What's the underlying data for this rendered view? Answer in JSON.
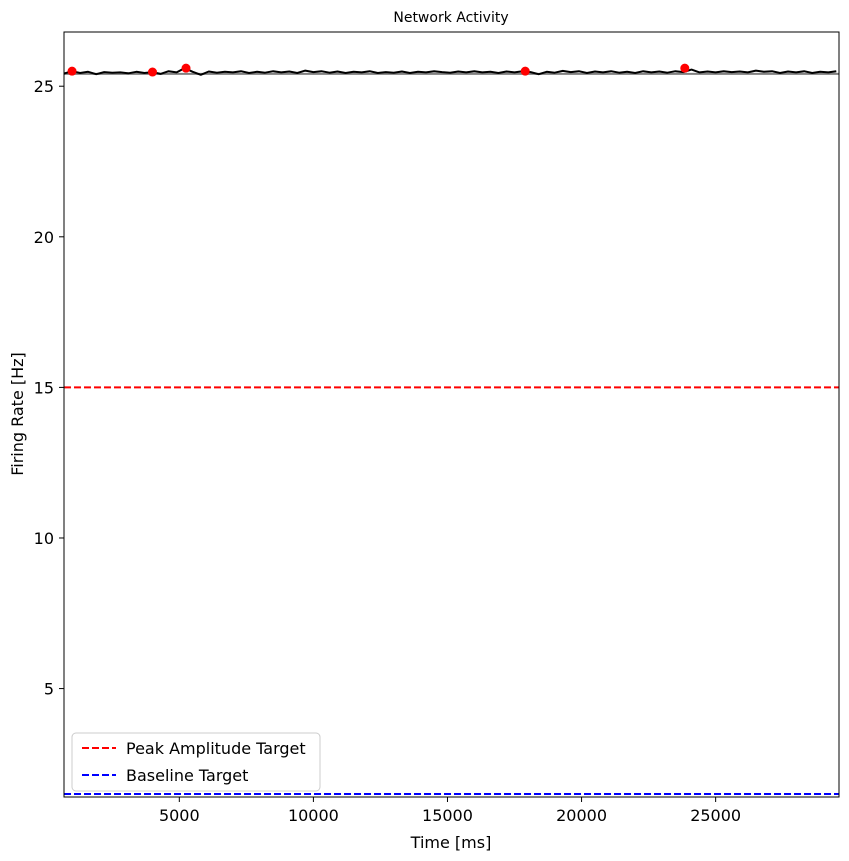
{
  "chart_data": {
    "type": "line",
    "title": "Network Activity",
    "xlabel": "Time [ms]",
    "ylabel": "Firing Rate [Hz]",
    "xlim": [
      700,
      29600
    ],
    "ylim": [
      1.4,
      26.8
    ],
    "xticks": [
      5000,
      10000,
      15000,
      20000,
      25000
    ],
    "yticks": [
      5,
      10,
      15,
      20,
      25
    ],
    "grid": false,
    "legend_position": "lower-left",
    "series": [
      {
        "role": "activity",
        "color": "#000000",
        "x": [
          700,
          1000,
          1300,
          1600,
          1900,
          2200,
          2500,
          2800,
          3100,
          3400,
          3700,
          4000,
          4300,
          4600,
          4900,
          5200,
          5500,
          5800,
          6100,
          6400,
          6700,
          7000,
          7300,
          7600,
          7900,
          8200,
          8500,
          8800,
          9100,
          9400,
          9700,
          10000,
          10300,
          10600,
          10900,
          11200,
          11500,
          11800,
          12100,
          12400,
          12700,
          13000,
          13300,
          13600,
          13900,
          14200,
          14500,
          14800,
          15100,
          15400,
          15700,
          16000,
          16300,
          16600,
          16900,
          17200,
          17500,
          17800,
          18100,
          18400,
          18700,
          19000,
          19300,
          19600,
          19900,
          20200,
          20500,
          20800,
          21100,
          21400,
          21700,
          22000,
          22300,
          22600,
          22900,
          23200,
          23500,
          23800,
          24100,
          24400,
          24700,
          25000,
          25300,
          25600,
          25900,
          26200,
          26500,
          26800,
          27100,
          27400,
          27700,
          28000,
          28300,
          28600,
          28900,
          29200,
          29500
        ],
        "y": [
          25.42,
          25.5,
          25.44,
          25.48,
          25.4,
          25.47,
          25.45,
          25.46,
          25.43,
          25.48,
          25.44,
          25.47,
          25.41,
          25.5,
          25.46,
          25.6,
          25.48,
          25.38,
          25.49,
          25.45,
          25.48,
          25.46,
          25.5,
          25.44,
          25.48,
          25.45,
          25.5,
          25.46,
          25.49,
          25.44,
          25.52,
          25.47,
          25.5,
          25.45,
          25.49,
          25.44,
          25.48,
          25.46,
          25.5,
          25.44,
          25.47,
          25.45,
          25.49,
          25.44,
          25.48,
          25.46,
          25.5,
          25.47,
          25.45,
          25.49,
          25.46,
          25.5,
          25.46,
          25.48,
          25.44,
          25.49,
          25.46,
          25.5,
          25.47,
          25.4,
          25.48,
          25.45,
          25.51,
          25.47,
          25.5,
          25.44,
          25.49,
          25.46,
          25.5,
          25.45,
          25.48,
          25.44,
          25.5,
          25.46,
          25.49,
          25.45,
          25.5,
          25.47,
          25.55,
          25.46,
          25.49,
          25.46,
          25.5,
          25.47,
          25.49,
          25.46,
          25.52,
          25.48,
          25.5,
          25.44,
          25.49,
          25.46,
          25.5,
          25.44,
          25.48,
          25.46,
          25.5
        ]
      },
      {
        "role": "baseline",
        "color": "#808080",
        "x": [
          700,
          29600
        ],
        "y": [
          25.41,
          25.41
        ]
      }
    ],
    "peaks": {
      "color": "#ff0000",
      "x": [
        1000,
        4000,
        5250,
        17900,
        23850
      ],
      "y": [
        25.5,
        25.47,
        25.6,
        25.5,
        25.6
      ]
    },
    "reference_lines": [
      {
        "name": "Peak Amplitude Target",
        "y": 15,
        "color": "#ff0000",
        "style": "dashed"
      },
      {
        "name": "Baseline Target",
        "y": 1.5,
        "color": "#0000ff",
        "style": "dashed"
      }
    ]
  }
}
